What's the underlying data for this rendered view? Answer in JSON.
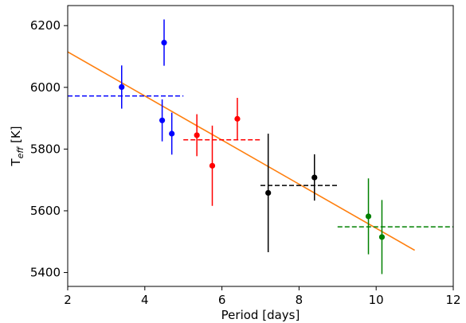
{
  "chart_data": {
    "type": "scatter",
    "xlabel": "Period [days]",
    "ylabel": {
      "main": "T",
      "sub": "eff",
      "unit": " [K]"
    },
    "xlim": [
      2,
      12
    ],
    "ylim": [
      5355,
      6265
    ],
    "xticks": [
      2,
      4,
      6,
      8,
      10,
      12
    ],
    "yticks": [
      5400,
      5600,
      5800,
      6000,
      6200
    ],
    "grid": false,
    "fit_line": {
      "color": "#ff7f0e",
      "x": [
        2,
        11
      ],
      "y": [
        6115,
        5472
      ]
    },
    "groups": [
      {
        "color": "#0000ff",
        "points": [
          {
            "x": 3.4,
            "y": 6001,
            "err": 70
          },
          {
            "x": 4.5,
            "y": 6145,
            "err": 75
          },
          {
            "x": 4.45,
            "y": 5893,
            "err": 68
          },
          {
            "x": 4.7,
            "y": 5850,
            "err": 68
          }
        ],
        "mean": {
          "y": 5972,
          "x": [
            2,
            5
          ]
        }
      },
      {
        "color": "#ff0000",
        "points": [
          {
            "x": 5.35,
            "y": 5845,
            "err": 68
          },
          {
            "x": 5.75,
            "y": 5746,
            "err": 130
          },
          {
            "x": 6.4,
            "y": 5898,
            "err": 68
          }
        ],
        "mean": {
          "y": 5830,
          "x": [
            5,
            7
          ]
        }
      },
      {
        "color": "#000000",
        "points": [
          {
            "x": 7.2,
            "y": 5658,
            "err": 192
          },
          {
            "x": 8.4,
            "y": 5708,
            "err": 75
          }
        ],
        "mean": {
          "y": 5682,
          "x": [
            7,
            9
          ]
        }
      },
      {
        "color": "#008000",
        "points": [
          {
            "x": 9.8,
            "y": 5582,
            "err": 123
          },
          {
            "x": 10.15,
            "y": 5515,
            "err": 120
          }
        ],
        "mean": {
          "y": 5548,
          "x": [
            9,
            12
          ]
        }
      }
    ]
  }
}
